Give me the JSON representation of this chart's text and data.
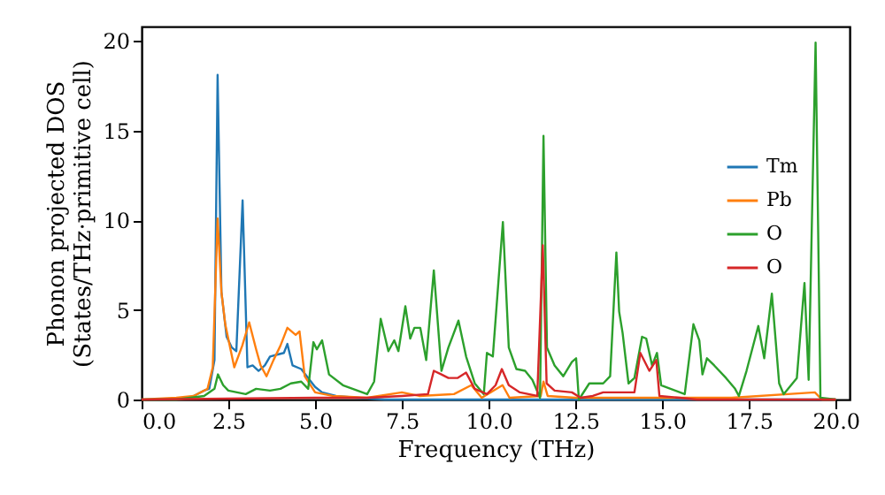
{
  "chart_data": {
    "type": "line",
    "xlabel": "Frequency (THz)",
    "ylabel": "Phonon projected DOS\n(States/THz·primitive cell)",
    "xlim": [
      0,
      20.4
    ],
    "ylim": [
      0,
      20.8
    ],
    "xticks": [
      {
        "value": 0,
        "label": "0.0"
      },
      {
        "value": 2.5,
        "label": "2.5"
      },
      {
        "value": 5,
        "label": "5.0"
      },
      {
        "value": 7.5,
        "label": "7.5"
      },
      {
        "value": 10,
        "label": "10.0"
      },
      {
        "value": 12.5,
        "label": "12.5"
      },
      {
        "value": 15,
        "label": "15.0"
      },
      {
        "value": 17.5,
        "label": "17.5"
      },
      {
        "value": 20,
        "label": "20.0"
      }
    ],
    "yticks": [
      0,
      5,
      10,
      15,
      20
    ],
    "legend": "right",
    "grid": false,
    "line_style": "solid",
    "series": [
      {
        "name": "Tm",
        "color": "#1f77b4",
        "x": [
          1.5,
          1.8,
          1.95,
          2.1,
          2.19,
          2.3,
          2.45,
          2.6,
          2.73,
          2.91,
          3.05,
          3.2,
          3.37,
          3.55,
          3.7,
          3.9,
          4.1,
          4.2,
          4.35,
          4.6,
          4.8,
          5.0,
          5.2,
          5.6,
          6.2,
          7,
          20
        ],
        "values": [
          0.2,
          0.5,
          0.6,
          2.2,
          18.1,
          6,
          3.5,
          2.9,
          2.7,
          11.1,
          1.8,
          1.9,
          1.6,
          1.9,
          2.4,
          2.5,
          2.6,
          3.1,
          1.9,
          1.7,
          1.2,
          0.7,
          0.4,
          0.2,
          0.1,
          0,
          0
        ]
      },
      {
        "name": "Pb",
        "color": "#ff7f0e",
        "x": [
          0,
          1.0,
          1.5,
          1.9,
          2.05,
          2.19,
          2.3,
          2.41,
          2.67,
          2.9,
          3.1,
          3.3,
          3.43,
          3.6,
          3.8,
          4.0,
          4.2,
          4.44,
          4.55,
          4.7,
          5.0,
          5.5,
          6.5,
          7.5,
          8.0,
          9.0,
          9.5,
          9.8,
          10.4,
          10.6,
          11.5,
          11.58,
          11.7,
          12.5,
          14,
          17,
          19.4,
          19.6,
          20
        ],
        "values": [
          0,
          0.1,
          0.2,
          0.6,
          1.8,
          10.1,
          6,
          4.2,
          1.8,
          3.0,
          4.3,
          2.8,
          1.9,
          1.3,
          2.2,
          3.0,
          4.0,
          3.6,
          3.8,
          1.3,
          0.4,
          0.2,
          0.1,
          0.4,
          0.2,
          0.3,
          0.8,
          0.1,
          0.8,
          0.1,
          0.2,
          1.0,
          0.2,
          0.1,
          0.1,
          0.1,
          0.4,
          0,
          0
        ]
      },
      {
        "name": "O",
        "color": "#2ca02c",
        "x": [
          0,
          1.0,
          1.8,
          2.1,
          2.2,
          2.35,
          2.5,
          3.0,
          3.3,
          3.7,
          4.0,
          4.3,
          4.6,
          4.8,
          4.95,
          5.05,
          5.2,
          5.4,
          5.8,
          6.5,
          6.7,
          6.89,
          7.11,
          7.28,
          7.4,
          7.6,
          7.74,
          7.86,
          8.03,
          8.2,
          8.42,
          8.64,
          8.84,
          9.13,
          9.35,
          9.6,
          9.86,
          9.95,
          10.12,
          10.41,
          10.58,
          10.8,
          11.05,
          11.26,
          11.48,
          11.58,
          11.68,
          11.9,
          12.15,
          12.4,
          12.52,
          12.6,
          12.9,
          13.3,
          13.5,
          13.68,
          13.76,
          13.86,
          14.03,
          14.2,
          14.42,
          14.54,
          14.71,
          14.85,
          14.97,
          15.65,
          15.9,
          16.07,
          16.16,
          16.29,
          16.5,
          16.84,
          17.1,
          17.21,
          17.43,
          17.77,
          17.94,
          18.16,
          18.37,
          18.5,
          18.88,
          19.1,
          19.22,
          19.42,
          19.56,
          20
        ],
        "values": [
          0,
          0,
          0.2,
          0.6,
          1.4,
          0.8,
          0.5,
          0.3,
          0.6,
          0.5,
          0.6,
          0.9,
          1.0,
          0.6,
          3.2,
          2.8,
          3.3,
          1.4,
          0.8,
          0.3,
          1.0,
          4.5,
          2.7,
          3.3,
          2.7,
          5.2,
          3.4,
          4.0,
          4.0,
          2.2,
          7.2,
          1.6,
          2.9,
          4.4,
          2.4,
          0.9,
          0.3,
          2.6,
          2.4,
          9.9,
          2.9,
          1.7,
          1.6,
          1.1,
          0.1,
          14.7,
          2.9,
          1.9,
          1.3,
          2.1,
          2.3,
          0,
          0.9,
          0.9,
          1.3,
          8.2,
          4.9,
          3.7,
          0.9,
          1.2,
          3.5,
          3.4,
          1.9,
          2.6,
          0.8,
          0.3,
          4.2,
          3.3,
          1.4,
          2.3,
          1.9,
          1.2,
          0.6,
          0.2,
          1.6,
          4.1,
          2.3,
          5.9,
          0.9,
          0.3,
          1.2,
          6.5,
          1.1,
          19.9,
          0.1,
          0
        ]
      },
      {
        "name": "O",
        "color": "#d62728",
        "x": [
          0,
          5,
          6.5,
          7.5,
          8.25,
          8.42,
          8.64,
          8.84,
          9.1,
          9.35,
          9.6,
          9.95,
          10.2,
          10.38,
          10.58,
          10.9,
          11.4,
          11.56,
          11.67,
          11.9,
          12.4,
          12.65,
          13.0,
          13.3,
          14.2,
          14.37,
          14.63,
          14.83,
          14.92,
          15.5,
          16,
          20
        ],
        "values": [
          0,
          0.1,
          0.1,
          0.2,
          0.3,
          1.6,
          1.4,
          1.2,
          1.2,
          1.5,
          0.6,
          0.3,
          0.8,
          1.7,
          0.8,
          0.4,
          0.2,
          8.6,
          0.9,
          0.5,
          0.4,
          0.1,
          0.2,
          0.4,
          0.4,
          2.6,
          1.6,
          2.2,
          0.2,
          0.1,
          0,
          0
        ]
      }
    ]
  }
}
